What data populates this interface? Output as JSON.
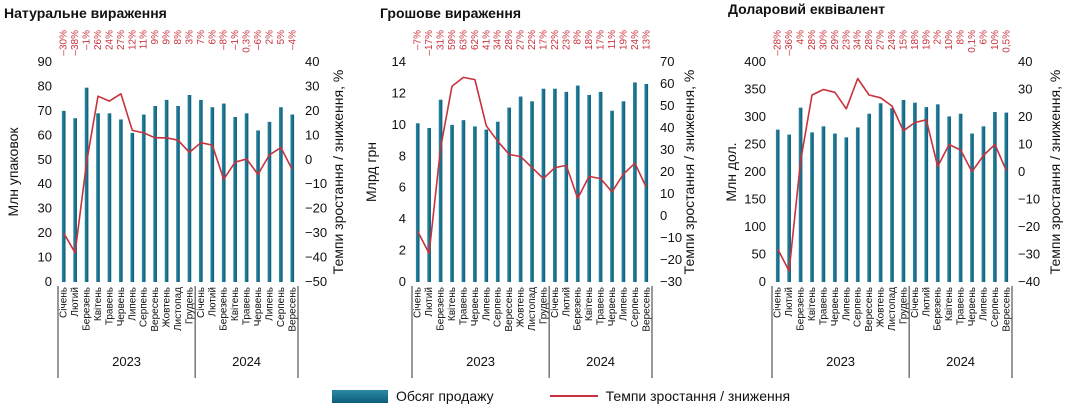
{
  "months": [
    "Січень",
    "Лютий",
    "Березень",
    "Квітень",
    "Травень",
    "Червень",
    "Липень",
    "Серпень",
    "Вересень",
    "Жовтень",
    "Листопад",
    "Грудень",
    "Січень",
    "Лютий",
    "Березень",
    "Квітень",
    "Травень",
    "Червень",
    "Липень",
    "Серпень",
    "Вересень"
  ],
  "years": [
    "2023",
    "2024"
  ],
  "legend": {
    "bars": "Обсяг продажу",
    "line": "Темпи зростання / зниження"
  },
  "colors": {
    "bar": "#0d5c78",
    "bar_light": "#2b8aa6",
    "line": "#c8323c"
  },
  "chart_data": [
    {
      "type": "bar",
      "title": "Натуральне вираження",
      "ylabel": "Млн упаковок",
      "y2label": "Темпи зростання / зниження, %",
      "ylim": [
        0,
        90
      ],
      "yticks": [
        0,
        10,
        20,
        30,
        40,
        50,
        60,
        70,
        80,
        90
      ],
      "y2lim": [
        -50,
        40
      ],
      "y2ticks": [
        -50,
        -40,
        -30,
        -20,
        -10,
        0,
        10,
        20,
        30,
        40
      ],
      "series": [
        {
          "name": "Обсяг продажу",
          "values": [
            70,
            67,
            79.5,
            69,
            69,
            66.5,
            61,
            68.5,
            72,
            74.5,
            72,
            76.5,
            74.5,
            71.5,
            73,
            67.5,
            69,
            62,
            65.5,
            71.5,
            68.5
          ]
        },
        {
          "name": "Темпи зростання / зниження",
          "values": [
            -30,
            -38,
            -1,
            26,
            24,
            27,
            12,
            11,
            9,
            9,
            8,
            3,
            7,
            6,
            -8,
            -1,
            0.3,
            -6,
            2,
            5,
            -4
          ]
        }
      ],
      "pct_labels": [
        "–30%",
        "–38%",
        "–1%",
        "26%",
        "24%",
        "27%",
        "12%",
        "11%",
        "9%",
        "9%",
        "8%",
        "3%",
        "7%",
        "6%",
        "–8%",
        "–1%",
        "0,3%",
        "–6%",
        "2%",
        "5%",
        "–4%"
      ]
    },
    {
      "type": "bar",
      "title": "Грошове вираження",
      "ylabel": "Млрд грн",
      "y2label": "Темпи зростання / зниження, %",
      "ylim": [
        0,
        14
      ],
      "yticks": [
        0,
        2,
        4,
        6,
        8,
        10,
        12,
        14
      ],
      "y2lim": [
        -30,
        70
      ],
      "y2ticks": [
        -30,
        -20,
        -10,
        0,
        10,
        20,
        30,
        40,
        50,
        60,
        70
      ],
      "series": [
        {
          "name": "Обсяг продажу",
          "values": [
            10.1,
            9.8,
            11.6,
            10.0,
            10.3,
            9.9,
            9.7,
            10.2,
            11.1,
            11.8,
            11.5,
            12.3,
            12.3,
            12.1,
            12.5,
            11.9,
            12.1,
            10.9,
            11.5,
            12.7,
            12.6
          ]
        },
        {
          "name": "Темпи зростання / зниження",
          "values": [
            -7,
            -17,
            31,
            59,
            63,
            62,
            41,
            34,
            28,
            27,
            22,
            17,
            22,
            23,
            8,
            18,
            17,
            11,
            19,
            24,
            13
          ]
        }
      ],
      "pct_labels": [
        "–7%",
        "–17%",
        "31%",
        "59%",
        "63%",
        "62%",
        "41%",
        "34%",
        "28%",
        "27%",
        "22%",
        "17%",
        "22%",
        "23%",
        "8%",
        "18%",
        "17%",
        "11%",
        "19%",
        "24%",
        "13%"
      ]
    },
    {
      "type": "bar",
      "title": "Доларовий еквівалент",
      "ylabel": "Млн дол.",
      "y2label": "Темпи зростання / зниження, %",
      "ylim": [
        0,
        400
      ],
      "yticks": [
        0,
        50,
        100,
        150,
        200,
        250,
        300,
        350,
        400
      ],
      "y2lim": [
        -40,
        40
      ],
      "y2ticks": [
        -40,
        -30,
        -20,
        -10,
        0,
        10,
        20,
        30,
        40
      ],
      "series": [
        {
          "name": "Обсяг продажу",
          "values": [
            277,
            268,
            317,
            272,
            283,
            270,
            263,
            281,
            306,
            325,
            316,
            331,
            326,
            318,
            323,
            301,
            306,
            270,
            283,
            309,
            308
          ]
        },
        {
          "name": "Темпи зростання / зниження",
          "values": [
            -28,
            -36,
            4,
            28,
            30,
            29,
            23,
            34,
            28,
            27,
            24,
            15,
            18,
            19,
            2,
            10,
            8,
            0.1,
            6,
            10,
            0.5
          ]
        }
      ],
      "pct_labels": [
        "–28%",
        "–36%",
        "4%",
        "28%",
        "30%",
        "29%",
        "23%",
        "34%",
        "28%",
        "27%",
        "24%",
        "15%",
        "18%",
        "19%",
        "2%",
        "10%",
        "8%",
        "0,1%",
        "6%",
        "10%",
        "0,5%"
      ]
    }
  ]
}
